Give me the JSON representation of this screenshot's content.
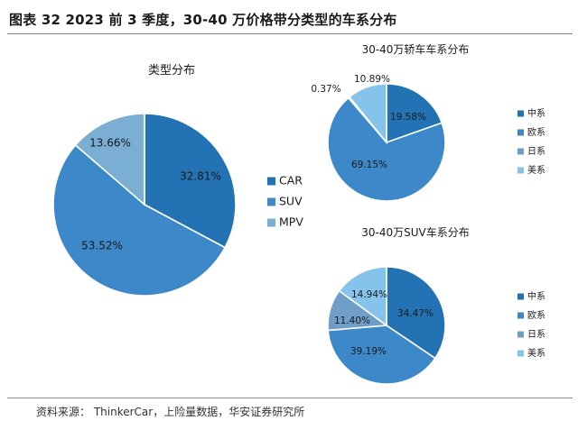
{
  "figure": {
    "title": "图表 32 2023 前 3 季度，30-40 万价格带分类型的车系分布",
    "source": "资料来源： ThinkerCar，上险量数据，华安证券研究所"
  },
  "chart_data": [
    {
      "type": "pie",
      "title": "类型分布",
      "categories": [
        "CAR",
        "SUV",
        "MPV"
      ],
      "values": [
        32.81,
        53.52,
        13.66
      ],
      "value_labels": [
        "32.81%",
        "53.52%",
        "13.66%"
      ],
      "colors": [
        "#2272b4",
        "#3d88c8",
        "#7aaed3"
      ],
      "legend_position": "right"
    },
    {
      "type": "pie",
      "title": "30-40万轿车车系分布",
      "categories": [
        "中系",
        "欧系",
        "日系",
        "美系"
      ],
      "values": [
        19.58,
        69.15,
        0.37,
        10.89
      ],
      "value_labels": [
        "19.58%",
        "69.15%",
        "0.37%",
        "10.89%"
      ],
      "colors": [
        "#2272b4",
        "#3d88c8",
        "#6f9fc8",
        "#86c3ea"
      ],
      "legend_position": "right"
    },
    {
      "type": "pie",
      "title": "30-40万SUV车系分布",
      "categories": [
        "中系",
        "欧系",
        "日系",
        "美系"
      ],
      "values": [
        34.47,
        39.19,
        11.4,
        14.94
      ],
      "value_labels": [
        "34.47%",
        "39.19%",
        "11.40%",
        "14.94%"
      ],
      "colors": [
        "#2272b4",
        "#3d88c8",
        "#6f9fc8",
        "#86c3ea"
      ],
      "legend_position": "right"
    }
  ]
}
